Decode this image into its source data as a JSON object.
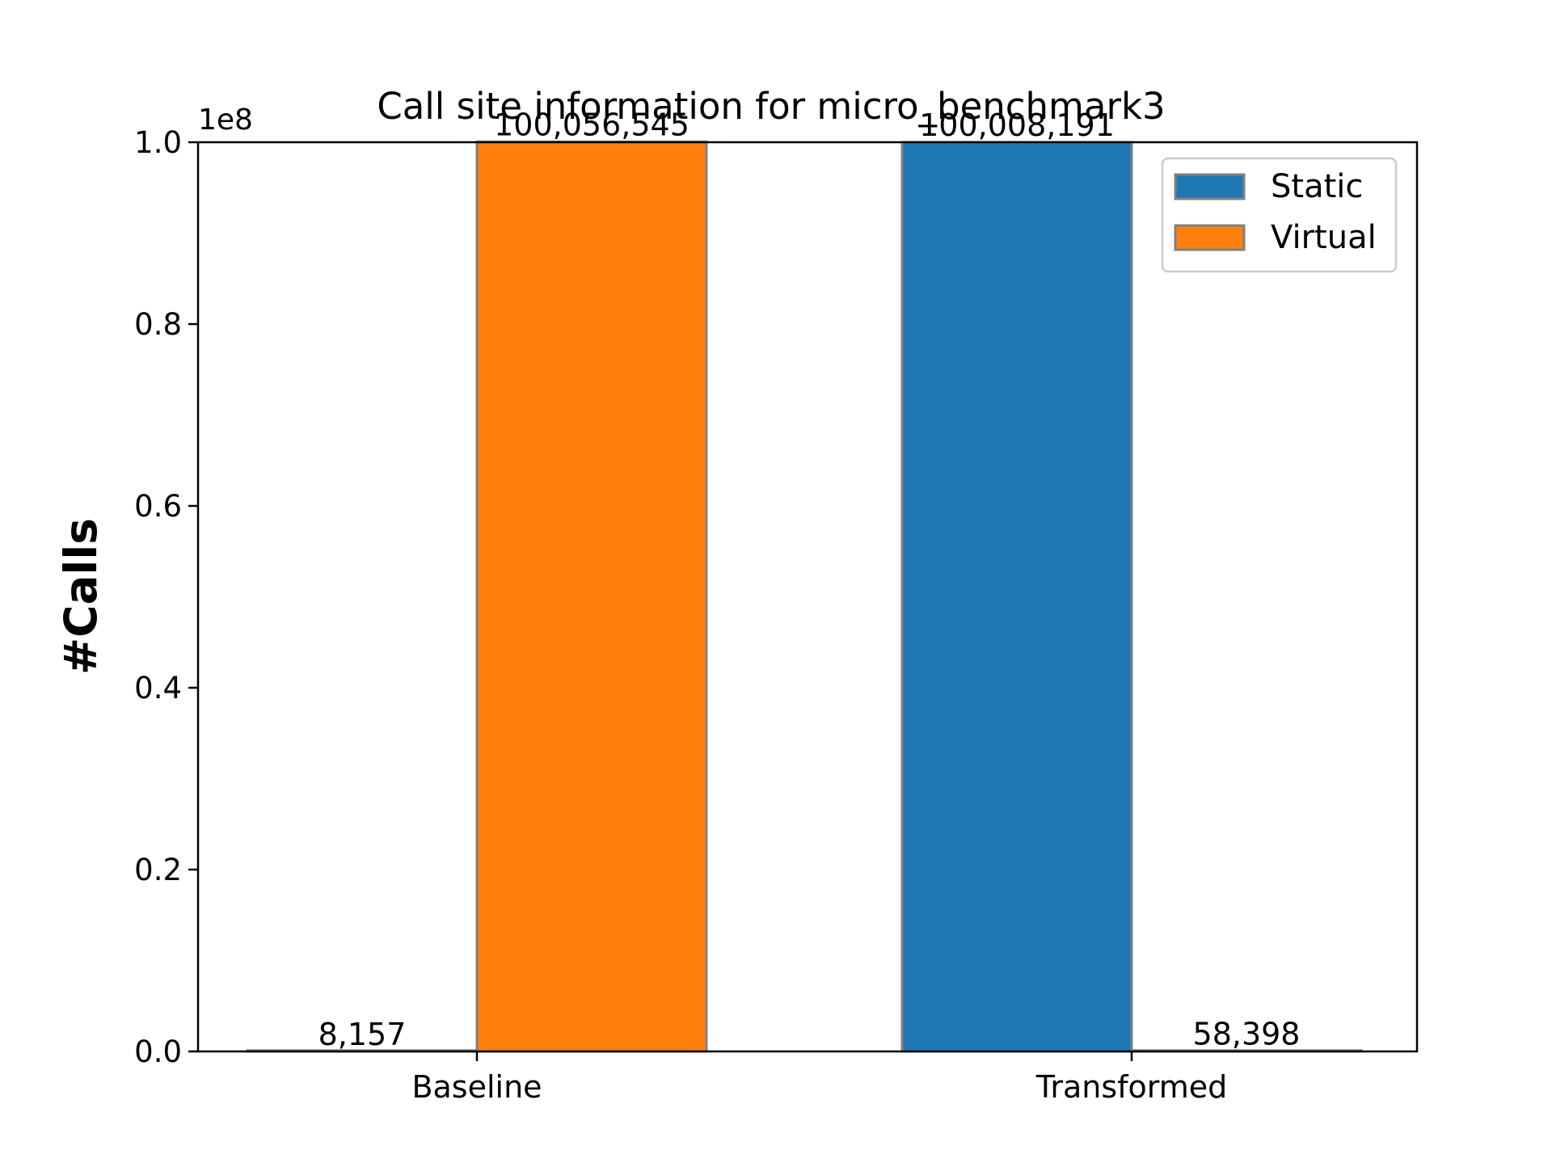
{
  "chart_data": {
    "type": "bar",
    "title": "Call site information for micro_benchmark3",
    "xlabel": "",
    "ylabel": "#Calls",
    "y_offset_label": "1e8",
    "categories": [
      "Baseline",
      "Transformed"
    ],
    "series": [
      {
        "name": "Static",
        "color": "#1f77b4",
        "values": [
          8157,
          100008191
        ]
      },
      {
        "name": "Virtual",
        "color": "#ff7f0e",
        "values": [
          100056545,
          58398
        ]
      }
    ],
    "data_labels": {
      "Static": [
        "8,157",
        "100,008,191"
      ],
      "Virtual": [
        "100,056,545",
        "58,398"
      ]
    },
    "ylim": [
      0,
      100000000
    ],
    "yticks": [
      0,
      20000000,
      40000000,
      60000000,
      80000000,
      100000000
    ],
    "ytick_labels": [
      "0.0",
      "0.2",
      "0.4",
      "0.6",
      "0.8",
      "1.0"
    ],
    "legend_position": "top-right",
    "grid": false,
    "bar_edge_color": "#808080"
  }
}
